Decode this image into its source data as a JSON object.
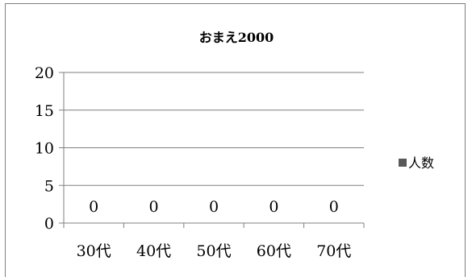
{
  "chart_data": {
    "type": "bar",
    "title": "おまえ2000",
    "categories": [
      "30代",
      "40代",
      "50代",
      "60代",
      "70代"
    ],
    "series": [
      {
        "name": "人数",
        "values": [
          0,
          0,
          0,
          0,
          0
        ],
        "color": "#595959"
      }
    ],
    "data_labels": [
      "0",
      "0",
      "0",
      "0",
      "0"
    ],
    "y_ticks": [
      "0",
      "5",
      "10",
      "15",
      "20"
    ],
    "ylim": [
      0,
      20
    ],
    "grid": true,
    "legend_position": "right",
    "colors": {
      "gridline": "#7f7f7f",
      "axis": "#7f7f7f",
      "frame": "#7f7f7f"
    }
  }
}
